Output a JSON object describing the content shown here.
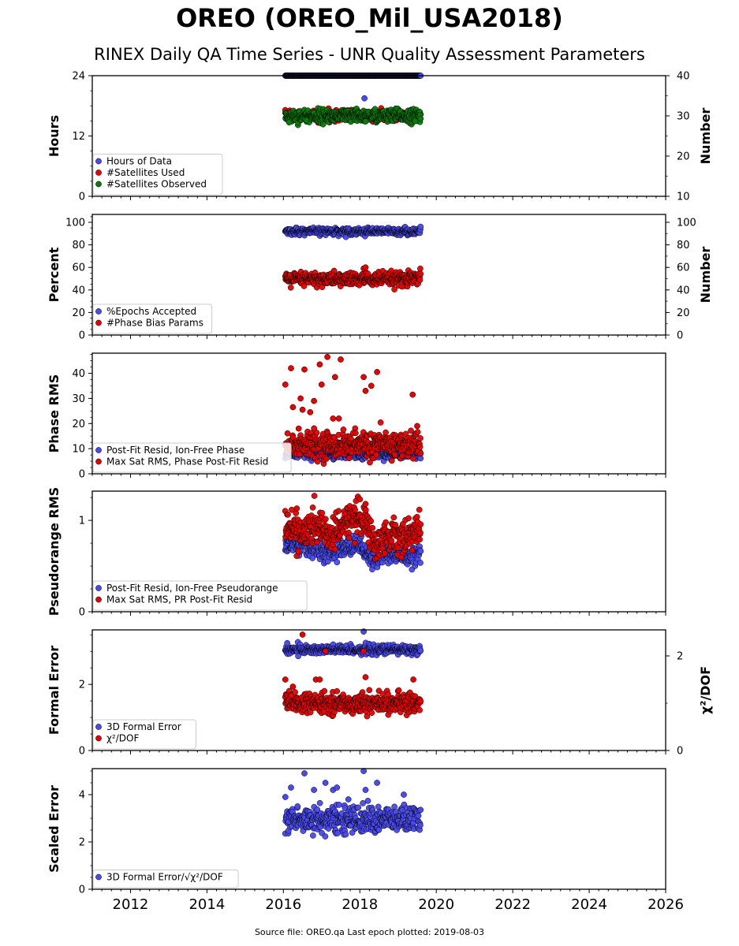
{
  "title": "OREO (OREO_Mil_USA2018)",
  "subtitle": "RINEX Daily QA Time Series - UNR Quality Assessment Parameters",
  "footer": "Source file: OREO.qa Last epoch plotted: 2019-08-03",
  "colors": {
    "blue": "#4a4af0",
    "red": "#e50000",
    "green": "#0a7a0a",
    "edge": "#000000"
  },
  "chart_data": [
    {
      "type": "scatter",
      "ylabel": "Hours",
      "ylim": [
        0,
        24
      ],
      "yticks": [
        0,
        12,
        24
      ],
      "y2label": "Number",
      "y2lim": [
        10,
        40
      ],
      "y2ticks": [
        10,
        20,
        30,
        40
      ],
      "xlim": [
        2011.0,
        2026.0
      ],
      "legend_position": "lower-left",
      "series": [
        {
          "name": "Hours of Data",
          "color": "blue",
          "axis": "left",
          "x_range": [
            2016.05,
            2019.59
          ],
          "y_mean": 24.0,
          "y_spread": 0.0,
          "outliers": [
            [
              2018.12,
              19.5
            ]
          ]
        },
        {
          "name": "#Satellites Used",
          "color": "red",
          "axis": "right",
          "x_range": [
            2016.05,
            2019.59
          ],
          "y_mean": 30.0,
          "y_spread": 0.6,
          "outliers": []
        },
        {
          "name": "#Satellites Observed",
          "color": "green",
          "axis": "right",
          "x_range": [
            2016.05,
            2019.59
          ],
          "y_mean": 30.0,
          "y_spread": 0.8,
          "outliers": [
            [
              2016.15,
              28.4
            ],
            [
              2016.6,
              28.9
            ],
            [
              2018.15,
              28.6
            ],
            [
              2019.45,
              28.7
            ]
          ]
        }
      ]
    },
    {
      "type": "scatter",
      "ylabel": "Percent",
      "ylim": [
        0,
        107
      ],
      "yticks": [
        0,
        20,
        40,
        60,
        80,
        100
      ],
      "y2label": "Number",
      "y2lim": [
        0,
        107
      ],
      "y2ticks": [
        0,
        20,
        40,
        60,
        80,
        100
      ],
      "xlim": [
        2011.0,
        2026.0
      ],
      "legend_position": "lower-left",
      "series": [
        {
          "name": "%Epochs Accepted",
          "color": "blue",
          "axis": "left",
          "x_range": [
            2016.05,
            2019.59
          ],
          "y_mean": 92.0,
          "y_spread": 1.5,
          "outliers": []
        },
        {
          "name": "#Phase Bias Params",
          "color": "red",
          "axis": "right",
          "x_range": [
            2016.05,
            2019.59
          ],
          "y_mean": 49.5,
          "y_spread": 3.0,
          "outliers": [
            [
              2018.1,
              59.0
            ],
            [
              2018.15,
              60.0
            ],
            [
              2019.1,
              43.0
            ]
          ]
        }
      ]
    },
    {
      "type": "scatter",
      "ylabel": "Phase RMS",
      "ylim": [
        0,
        48
      ],
      "yticks": [
        0,
        10,
        20,
        30,
        40
      ],
      "xlim": [
        2011.0,
        2026.0
      ],
      "legend_position": "lower-left",
      "series": [
        {
          "name": "Post-Fit Resid, Ion-Free Phase",
          "color": "blue",
          "axis": "left",
          "x_range": [
            2016.05,
            2019.59
          ],
          "y_mean": 7.8,
          "y_spread": 0.8,
          "outliers": []
        },
        {
          "name": "Max Sat RMS, Phase Post-Fit Resid",
          "color": "red",
          "axis": "left",
          "x_range": [
            2016.05,
            2019.59
          ],
          "y_mean": 11.5,
          "y_spread": 2.5,
          "outliers": [
            [
              2016.05,
              35.5
            ],
            [
              2016.2,
              42.0
            ],
            [
              2016.25,
              26.5
            ],
            [
              2016.45,
              30.0
            ],
            [
              2016.5,
              25.5
            ],
            [
              2016.55,
              41.5
            ],
            [
              2016.7,
              24.5
            ],
            [
              2016.8,
              29.0
            ],
            [
              2016.95,
              43.5
            ],
            [
              2017.0,
              35.5
            ],
            [
              2017.15,
              46.5
            ],
            [
              2017.35,
              38.5
            ],
            [
              2017.5,
              45.5
            ],
            [
              2018.1,
              38.5
            ],
            [
              2018.15,
              33.0
            ],
            [
              2018.3,
              35.0
            ],
            [
              2018.45,
              40.5
            ],
            [
              2019.38,
              31.5
            ],
            [
              2017.3,
              22.0
            ],
            [
              2017.45,
              22.0
            ],
            [
              2016.4,
              18.0
            ],
            [
              2019.5,
              19.0
            ]
          ]
        }
      ]
    },
    {
      "type": "scatter",
      "ylabel": "Pseudorange RMS",
      "ylim": [
        0,
        1.32
      ],
      "yticks": [
        0,
        1
      ],
      "xlim": [
        2011.0,
        2026.0
      ],
      "legend_position": "lower-left",
      "series": [
        {
          "name": "Post-Fit Resid, Ion-Free Pseudorange",
          "color": "blue",
          "axis": "left",
          "profile": [
            [
              2016.05,
              0.75
            ],
            [
              2016.6,
              0.72
            ],
            [
              2017.2,
              0.63
            ],
            [
              2017.6,
              0.7
            ],
            [
              2018.0,
              0.74
            ],
            [
              2018.3,
              0.55
            ],
            [
              2018.7,
              0.63
            ],
            [
              2019.2,
              0.6
            ],
            [
              2019.59,
              0.64
            ]
          ],
          "y_spread": 0.05,
          "outliers": []
        },
        {
          "name": "Max Sat RMS, PR Post-Fit Resid",
          "color": "red",
          "axis": "left",
          "profile": [
            [
              2016.05,
              0.95
            ],
            [
              2016.5,
              0.85
            ],
            [
              2016.9,
              0.95
            ],
            [
              2017.3,
              0.82
            ],
            [
              2017.8,
              1.05
            ],
            [
              2018.2,
              0.95
            ],
            [
              2018.4,
              0.72
            ],
            [
              2018.8,
              0.85
            ],
            [
              2019.2,
              0.82
            ],
            [
              2019.59,
              0.9
            ]
          ],
          "y_spread": 0.09,
          "outliers": [
            [
              2017.95,
              1.26
            ],
            [
              2018.0,
              1.23
            ],
            [
              2018.15,
              1.18
            ],
            [
              2016.35,
              1.13
            ]
          ]
        }
      ]
    },
    {
      "type": "scatter",
      "ylabel": "Formal Error",
      "ylim": [
        0,
        3.65
      ],
      "yticks": [
        0,
        2
      ],
      "y2label": "χ²/DOF",
      "y2lim": [
        0,
        2.55
      ],
      "y2ticks": [
        0,
        2
      ],
      "xlim": [
        2011.0,
        2026.0
      ],
      "legend_position": "lower-left",
      "series": [
        {
          "name": "3D Formal Error",
          "color": "blue",
          "axis": "left",
          "x_range": [
            2016.05,
            2019.59
          ],
          "y_mean": 3.05,
          "y_spread": 0.07,
          "outliers": [
            [
              2018.1,
              3.6
            ],
            [
              2016.1,
              3.25
            ]
          ]
        },
        {
          "name": "χ²/DOF",
          "color": "red",
          "axis": "right",
          "x_range": [
            2016.05,
            2019.59
          ],
          "y_mean": 1.0,
          "y_spread": 0.1,
          "outliers": [
            [
              2016.5,
              2.45
            ],
            [
              2018.1,
              2.1
            ],
            [
              2016.05,
              1.5
            ],
            [
              2016.25,
              1.35
            ],
            [
              2016.85,
              1.5
            ],
            [
              2016.95,
              1.5
            ],
            [
              2018.15,
              1.55
            ],
            [
              2019.4,
              1.5
            ],
            [
              2017.1,
              2.1
            ]
          ]
        }
      ]
    },
    {
      "type": "scatter",
      "ylabel": "Scaled Error",
      "ylim": [
        0,
        5.1
      ],
      "yticks": [
        0,
        2,
        4
      ],
      "xlim": [
        2011.0,
        2026.0
      ],
      "xticks": [
        2012,
        2014,
        2016,
        2018,
        2020,
        2022,
        2024,
        2026
      ],
      "legend_position": "lower-left",
      "series": [
        {
          "name": "3D Formal Error/√χ²/DOF",
          "color": "blue",
          "axis": "left",
          "x_range": [
            2016.05,
            2019.59
          ],
          "y_mean": 2.95,
          "y_spread": 0.28,
          "outliers": [
            [
              2016.55,
              4.9
            ],
            [
              2018.1,
              5.0
            ],
            [
              2016.2,
              4.3
            ],
            [
              2016.8,
              4.2
            ],
            [
              2017.1,
              4.5
            ],
            [
              2017.3,
              4.2
            ],
            [
              2017.4,
              4.3
            ],
            [
              2017.7,
              3.8
            ],
            [
              2018.15,
              4.2
            ],
            [
              2018.45,
              4.5
            ],
            [
              2019.15,
              4.0
            ],
            [
              2016.05,
              3.9
            ]
          ]
        }
      ]
    }
  ]
}
